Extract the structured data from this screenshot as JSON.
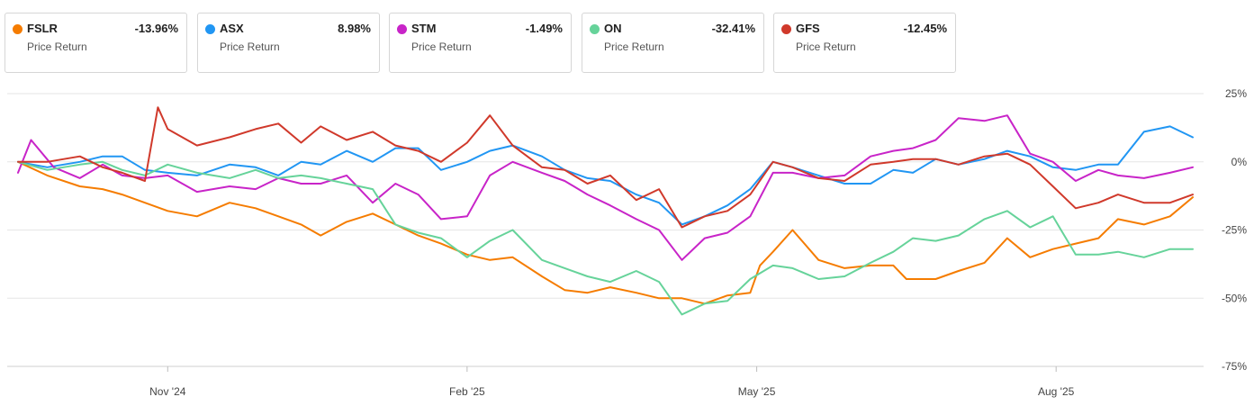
{
  "legend": [
    {
      "ticker": "FSLR",
      "value": "-13.96%",
      "label": "Price Return",
      "color": "#f57c00"
    },
    {
      "ticker": "ASX",
      "value": "8.98%",
      "label": "Price Return",
      "color": "#2196f3"
    },
    {
      "ticker": "STM",
      "value": "-1.49%",
      "label": "Price Return",
      "color": "#c824c8"
    },
    {
      "ticker": "ON",
      "value": "-32.41%",
      "label": "Price Return",
      "color": "#66d39a"
    },
    {
      "ticker": "GFS",
      "value": "-12.45%",
      "label": "Price Return",
      "color": "#d0392b"
    }
  ],
  "chart_data": {
    "type": "line",
    "y_unit": "%",
    "ylim": [
      -75,
      25
    ],
    "y_ticks": [
      "25%",
      "0%",
      "-25%",
      "-50%",
      "-75%"
    ],
    "y_tick_values": [
      25,
      0,
      -25,
      -50,
      -75
    ],
    "x_ticks": [
      "Nov '24",
      "Feb '25",
      "May '25",
      "Aug '25"
    ],
    "x_tick_dates": [
      "2024-11-01",
      "2025-02-01",
      "2025-05-01",
      "2025-08-01"
    ],
    "x_range": [
      "2024-09-16",
      "2025-09-12"
    ],
    "grid": true,
    "legend_position": "top",
    "series": [
      {
        "name": "FSLR",
        "color": "#f57c00",
        "points": [
          [
            "2024-09-16",
            0
          ],
          [
            "2024-09-25",
            -5
          ],
          [
            "2024-10-05",
            -9
          ],
          [
            "2024-10-12",
            -10
          ],
          [
            "2024-10-18",
            -12
          ],
          [
            "2024-10-25",
            -15
          ],
          [
            "2024-11-01",
            -18
          ],
          [
            "2024-11-10",
            -20
          ],
          [
            "2024-11-20",
            -15
          ],
          [
            "2024-11-28",
            -17
          ],
          [
            "2024-12-05",
            -20
          ],
          [
            "2024-12-12",
            -23
          ],
          [
            "2024-12-18",
            -27
          ],
          [
            "2024-12-26",
            -22
          ],
          [
            "2025-01-03",
            -19
          ],
          [
            "2025-01-10",
            -23
          ],
          [
            "2025-01-17",
            -27
          ],
          [
            "2025-01-24",
            -30
          ],
          [
            "2025-02-01",
            -34
          ],
          [
            "2025-02-08",
            -36
          ],
          [
            "2025-02-15",
            -35
          ],
          [
            "2025-02-24",
            -42
          ],
          [
            "2025-03-03",
            -47
          ],
          [
            "2025-03-10",
            -48
          ],
          [
            "2025-03-17",
            -46
          ],
          [
            "2025-03-25",
            -48
          ],
          [
            "2025-04-01",
            -50
          ],
          [
            "2025-04-08",
            -50
          ],
          [
            "2025-04-15",
            -52
          ],
          [
            "2025-04-22",
            -49
          ],
          [
            "2025-04-29",
            -48
          ],
          [
            "2025-05-02",
            -38
          ],
          [
            "2025-05-06",
            -33
          ],
          [
            "2025-05-12",
            -25
          ],
          [
            "2025-05-20",
            -36
          ],
          [
            "2025-05-28",
            -39
          ],
          [
            "2025-06-05",
            -38
          ],
          [
            "2025-06-12",
            -38
          ],
          [
            "2025-06-16",
            -43
          ],
          [
            "2025-06-25",
            -43
          ],
          [
            "2025-07-02",
            -40
          ],
          [
            "2025-07-10",
            -37
          ],
          [
            "2025-07-17",
            -28
          ],
          [
            "2025-07-24",
            -35
          ],
          [
            "2025-07-31",
            -32
          ],
          [
            "2025-08-07",
            -30
          ],
          [
            "2025-08-14",
            -28
          ],
          [
            "2025-08-20",
            -21
          ],
          [
            "2025-08-28",
            -23
          ],
          [
            "2025-09-05",
            -20
          ],
          [
            "2025-09-12",
            -13
          ]
        ]
      },
      {
        "name": "ASX",
        "color": "#2196f3",
        "points": [
          [
            "2024-09-16",
            0
          ],
          [
            "2024-09-25",
            -2
          ],
          [
            "2024-10-05",
            0
          ],
          [
            "2024-10-12",
            2
          ],
          [
            "2024-10-18",
            2
          ],
          [
            "2024-10-25",
            -3
          ],
          [
            "2024-11-01",
            -4
          ],
          [
            "2024-11-10",
            -5
          ],
          [
            "2024-11-20",
            -1
          ],
          [
            "2024-11-28",
            -2
          ],
          [
            "2024-12-05",
            -5
          ],
          [
            "2024-12-12",
            0
          ],
          [
            "2024-12-18",
            -1
          ],
          [
            "2024-12-26",
            4
          ],
          [
            "2025-01-03",
            0
          ],
          [
            "2025-01-10",
            5
          ],
          [
            "2025-01-17",
            5
          ],
          [
            "2025-01-24",
            -3
          ],
          [
            "2025-02-01",
            0
          ],
          [
            "2025-02-08",
            4
          ],
          [
            "2025-02-15",
            6
          ],
          [
            "2025-02-24",
            2
          ],
          [
            "2025-03-03",
            -3
          ],
          [
            "2025-03-10",
            -6
          ],
          [
            "2025-03-17",
            -7
          ],
          [
            "2025-03-25",
            -12
          ],
          [
            "2025-04-01",
            -15
          ],
          [
            "2025-04-08",
            -23
          ],
          [
            "2025-04-15",
            -20
          ],
          [
            "2025-04-22",
            -16
          ],
          [
            "2025-04-29",
            -10
          ],
          [
            "2025-05-06",
            0
          ],
          [
            "2025-05-12",
            -2
          ],
          [
            "2025-05-20",
            -5
          ],
          [
            "2025-05-28",
            -8
          ],
          [
            "2025-06-05",
            -8
          ],
          [
            "2025-06-12",
            -3
          ],
          [
            "2025-06-18",
            -4
          ],
          [
            "2025-06-25",
            1
          ],
          [
            "2025-07-02",
            -1
          ],
          [
            "2025-07-10",
            1
          ],
          [
            "2025-07-17",
            4
          ],
          [
            "2025-07-24",
            2
          ],
          [
            "2025-07-31",
            -2
          ],
          [
            "2025-08-07",
            -3
          ],
          [
            "2025-08-14",
            -1
          ],
          [
            "2025-08-20",
            -1
          ],
          [
            "2025-08-28",
            11
          ],
          [
            "2025-09-05",
            13
          ],
          [
            "2025-09-12",
            9
          ]
        ]
      },
      {
        "name": "STM",
        "color": "#c824c8",
        "points": [
          [
            "2024-09-16",
            -4
          ],
          [
            "2024-09-20",
            8
          ],
          [
            "2024-09-27",
            -2
          ],
          [
            "2024-10-05",
            -6
          ],
          [
            "2024-10-12",
            -1
          ],
          [
            "2024-10-18",
            -5
          ],
          [
            "2024-10-25",
            -6
          ],
          [
            "2024-11-01",
            -5
          ],
          [
            "2024-11-10",
            -11
          ],
          [
            "2024-11-20",
            -9
          ],
          [
            "2024-11-28",
            -10
          ],
          [
            "2024-12-05",
            -6
          ],
          [
            "2024-12-12",
            -8
          ],
          [
            "2024-12-18",
            -8
          ],
          [
            "2024-12-26",
            -5
          ],
          [
            "2025-01-03",
            -15
          ],
          [
            "2025-01-10",
            -8
          ],
          [
            "2025-01-17",
            -12
          ],
          [
            "2025-01-24",
            -21
          ],
          [
            "2025-02-01",
            -20
          ],
          [
            "2025-02-08",
            -5
          ],
          [
            "2025-02-15",
            0
          ],
          [
            "2025-02-24",
            -4
          ],
          [
            "2025-03-03",
            -7
          ],
          [
            "2025-03-10",
            -12
          ],
          [
            "2025-03-17",
            -16
          ],
          [
            "2025-03-25",
            -21
          ],
          [
            "2025-04-01",
            -25
          ],
          [
            "2025-04-08",
            -36
          ],
          [
            "2025-04-15",
            -28
          ],
          [
            "2025-04-22",
            -26
          ],
          [
            "2025-04-29",
            -20
          ],
          [
            "2025-05-06",
            -4
          ],
          [
            "2025-05-12",
            -4
          ],
          [
            "2025-05-20",
            -6
          ],
          [
            "2025-05-28",
            -5
          ],
          [
            "2025-06-05",
            2
          ],
          [
            "2025-06-12",
            4
          ],
          [
            "2025-06-18",
            5
          ],
          [
            "2025-06-25",
            8
          ],
          [
            "2025-07-02",
            16
          ],
          [
            "2025-07-10",
            15
          ],
          [
            "2025-07-17",
            17
          ],
          [
            "2025-07-24",
            3
          ],
          [
            "2025-07-31",
            0
          ],
          [
            "2025-08-07",
            -7
          ],
          [
            "2025-08-14",
            -3
          ],
          [
            "2025-08-20",
            -5
          ],
          [
            "2025-08-28",
            -6
          ],
          [
            "2025-09-05",
            -4
          ],
          [
            "2025-09-12",
            -2
          ]
        ]
      },
      {
        "name": "ON",
        "color": "#66d39a",
        "points": [
          [
            "2024-09-16",
            0
          ],
          [
            "2024-09-25",
            -3
          ],
          [
            "2024-10-05",
            -1
          ],
          [
            "2024-10-12",
            0
          ],
          [
            "2024-10-18",
            -3
          ],
          [
            "2024-10-25",
            -5
          ],
          [
            "2024-11-01",
            -1
          ],
          [
            "2024-11-10",
            -4
          ],
          [
            "2024-11-20",
            -6
          ],
          [
            "2024-11-28",
            -3
          ],
          [
            "2024-12-05",
            -6
          ],
          [
            "2024-12-12",
            -5
          ],
          [
            "2024-12-18",
            -6
          ],
          [
            "2024-12-26",
            -8
          ],
          [
            "2025-01-03",
            -10
          ],
          [
            "2025-01-10",
            -23
          ],
          [
            "2025-01-17",
            -26
          ],
          [
            "2025-01-24",
            -28
          ],
          [
            "2025-02-01",
            -35
          ],
          [
            "2025-02-08",
            -29
          ],
          [
            "2025-02-15",
            -25
          ],
          [
            "2025-02-24",
            -36
          ],
          [
            "2025-03-03",
            -39
          ],
          [
            "2025-03-10",
            -42
          ],
          [
            "2025-03-17",
            -44
          ],
          [
            "2025-03-25",
            -40
          ],
          [
            "2025-04-01",
            -44
          ],
          [
            "2025-04-08",
            -56
          ],
          [
            "2025-04-15",
            -52
          ],
          [
            "2025-04-22",
            -51
          ],
          [
            "2025-04-29",
            -43
          ],
          [
            "2025-05-06",
            -38
          ],
          [
            "2025-05-12",
            -39
          ],
          [
            "2025-05-20",
            -43
          ],
          [
            "2025-05-28",
            -42
          ],
          [
            "2025-06-05",
            -37
          ],
          [
            "2025-06-12",
            -33
          ],
          [
            "2025-06-18",
            -28
          ],
          [
            "2025-06-25",
            -29
          ],
          [
            "2025-07-02",
            -27
          ],
          [
            "2025-07-10",
            -21
          ],
          [
            "2025-07-17",
            -18
          ],
          [
            "2025-07-24",
            -24
          ],
          [
            "2025-07-31",
            -20
          ],
          [
            "2025-08-07",
            -34
          ],
          [
            "2025-08-14",
            -34
          ],
          [
            "2025-08-20",
            -33
          ],
          [
            "2025-08-28",
            -35
          ],
          [
            "2025-09-05",
            -32
          ],
          [
            "2025-09-12",
            -32
          ]
        ]
      },
      {
        "name": "GFS",
        "color": "#d0392b",
        "points": [
          [
            "2024-09-16",
            0
          ],
          [
            "2024-09-25",
            0
          ],
          [
            "2024-10-05",
            2
          ],
          [
            "2024-10-12",
            -2
          ],
          [
            "2024-10-18",
            -4
          ],
          [
            "2024-10-25",
            -7
          ],
          [
            "2024-10-29",
            20
          ],
          [
            "2024-11-01",
            12
          ],
          [
            "2024-11-10",
            6
          ],
          [
            "2024-11-20",
            9
          ],
          [
            "2024-11-28",
            12
          ],
          [
            "2024-12-05",
            14
          ],
          [
            "2024-12-12",
            7
          ],
          [
            "2024-12-18",
            13
          ],
          [
            "2024-12-26",
            8
          ],
          [
            "2025-01-03",
            11
          ],
          [
            "2025-01-10",
            6
          ],
          [
            "2025-01-17",
            4
          ],
          [
            "2025-01-24",
            0
          ],
          [
            "2025-02-01",
            7
          ],
          [
            "2025-02-08",
            17
          ],
          [
            "2025-02-15",
            6
          ],
          [
            "2025-02-24",
            -2
          ],
          [
            "2025-03-03",
            -3
          ],
          [
            "2025-03-10",
            -8
          ],
          [
            "2025-03-17",
            -5
          ],
          [
            "2025-03-25",
            -14
          ],
          [
            "2025-04-01",
            -10
          ],
          [
            "2025-04-08",
            -24
          ],
          [
            "2025-04-15",
            -20
          ],
          [
            "2025-04-22",
            -18
          ],
          [
            "2025-04-29",
            -12
          ],
          [
            "2025-05-06",
            0
          ],
          [
            "2025-05-12",
            -2
          ],
          [
            "2025-05-20",
            -6
          ],
          [
            "2025-05-28",
            -7
          ],
          [
            "2025-06-05",
            -1
          ],
          [
            "2025-06-12",
            0
          ],
          [
            "2025-06-18",
            1
          ],
          [
            "2025-06-25",
            1
          ],
          [
            "2025-07-02",
            -1
          ],
          [
            "2025-07-10",
            2
          ],
          [
            "2025-07-17",
            3
          ],
          [
            "2025-07-24",
            -1
          ],
          [
            "2025-07-31",
            -9
          ],
          [
            "2025-08-07",
            -17
          ],
          [
            "2025-08-14",
            -15
          ],
          [
            "2025-08-20",
            -12
          ],
          [
            "2025-08-28",
            -15
          ],
          [
            "2025-09-05",
            -15
          ],
          [
            "2025-09-12",
            -12
          ]
        ]
      }
    ]
  }
}
